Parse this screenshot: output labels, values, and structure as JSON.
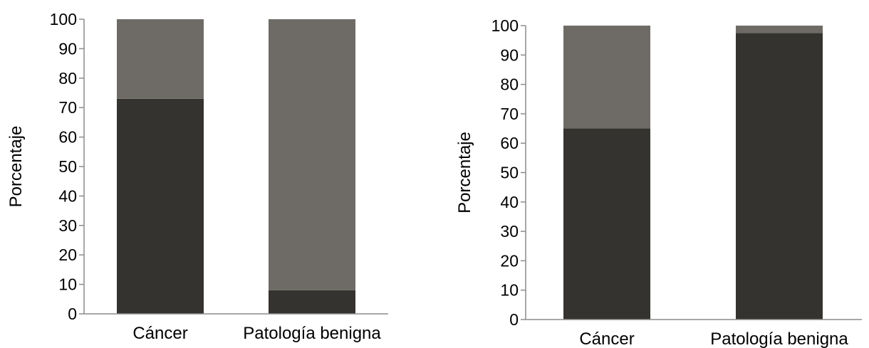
{
  "chart_data": [
    {
      "type": "bar",
      "stacked": true,
      "categories": [
        "Cáncer",
        "Patología benigna"
      ],
      "series": [
        {
          "color": "#35332f",
          "values": [
            73,
            8
          ]
        },
        {
          "color": "#6e6b66",
          "values": [
            27,
            92
          ]
        }
      ],
      "ylabel": "Porcentaje",
      "ylim": [
        0,
        100
      ],
      "yticks": [
        "0",
        "10",
        "20",
        "30",
        "40",
        "50",
        "60",
        "70",
        "80",
        "90",
        "100"
      ],
      "grid": false
    },
    {
      "type": "bar",
      "stacked": true,
      "categories": [
        "Cáncer",
        "Patología benigna"
      ],
      "series": [
        {
          "color": "#35332f",
          "values": [
            65,
            97.5
          ]
        },
        {
          "color": "#6e6b66",
          "values": [
            35,
            2.5
          ]
        }
      ],
      "ylabel": "Porcentaje",
      "ylim": [
        0,
        100
      ],
      "yticks": [
        "0",
        "10",
        "20",
        "30",
        "40",
        "50",
        "60",
        "70",
        "80",
        "90",
        "100"
      ],
      "grid": false
    }
  ]
}
